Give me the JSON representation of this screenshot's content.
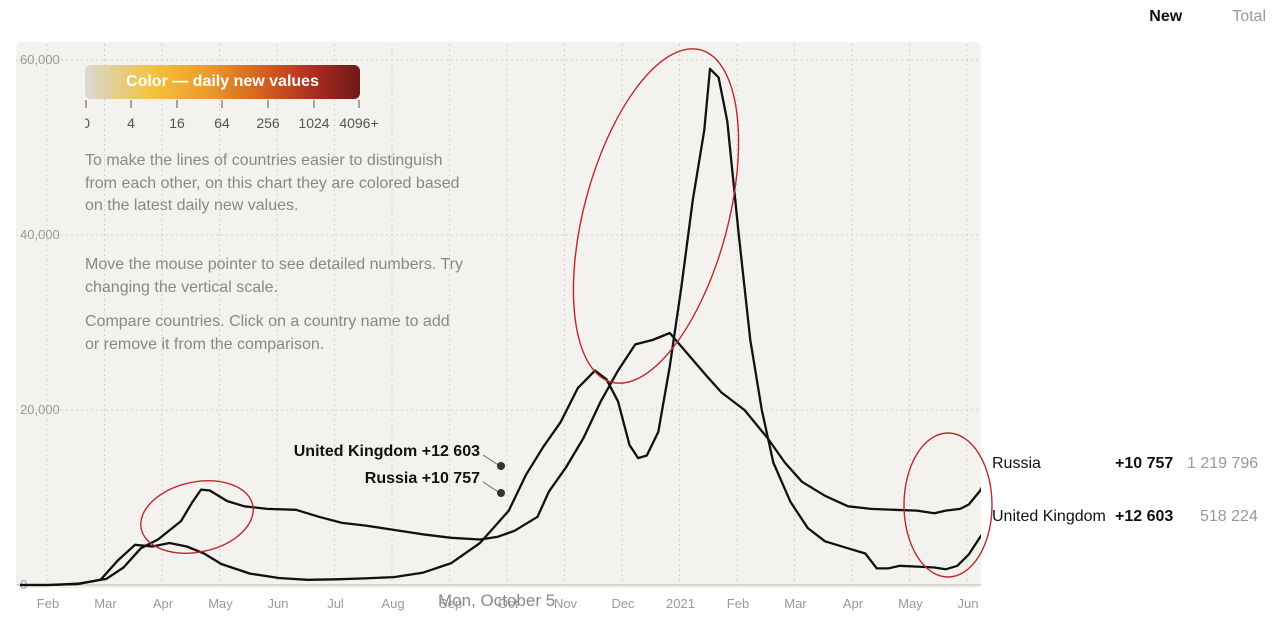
{
  "tabs": [
    {
      "label": "New",
      "active": true
    },
    {
      "label": "Total",
      "active": false
    }
  ],
  "legend": {
    "title": "Color — daily new values",
    "ticks": [
      "0",
      "4",
      "16",
      "64",
      "256",
      "1024",
      "4096+"
    ]
  },
  "info": {
    "p1": "To make the lines of countries easier to distinguish from each other, on this chart they are colored based on the latest daily new values.",
    "p2": "Move the mouse pointer to see detailed numbers. Try changing the vertical scale.",
    "p3": "Compare countries. Click on a country name to add or remove it from the comparison."
  },
  "hover": {
    "date": "Mon, October 5",
    "uk_label": "United Kingdom +12 603",
    "ru_label": "Russia +10 757"
  },
  "countries": [
    {
      "name": "Russia",
      "delta": "+10 757",
      "total": "1 219 796"
    },
    {
      "name": "United Kingdom",
      "delta": "+12 603",
      "total": "518 224"
    }
  ],
  "colors": {
    "panel": "#f3f2ee",
    "line": "#111111",
    "annotation": "#c0272d",
    "gradient": [
      "#d9d9d4",
      "#f3c23b",
      "#ea9a2c",
      "#d0561f",
      "#a52a1f",
      "#6e1a18"
    ]
  },
  "chart_data": {
    "type": "line",
    "title": "",
    "y_axis": {
      "ticks": [
        "0",
        "20,000",
        "40,000",
        "60,000"
      ],
      "ylim": [
        0,
        60000
      ]
    },
    "x_axis": {
      "ticks": [
        "Feb",
        "Mar",
        "Apr",
        "May",
        "Jun",
        "Jul",
        "Aug",
        "Sep",
        "Oct",
        "Nov",
        "Dec",
        "2021",
        "Feb",
        "Mar",
        "Apr",
        "May",
        "Jun"
      ]
    },
    "grid": true,
    "series": [
      {
        "name": "Russia",
        "points": [
          [
            0,
            0
          ],
          [
            0.5,
            0
          ],
          [
            1,
            150
          ],
          [
            1.5,
            700
          ],
          [
            1.8,
            2000
          ],
          [
            2.1,
            4200
          ],
          [
            2.4,
            5200
          ],
          [
            2.8,
            7300
          ],
          [
            3.0,
            9500
          ],
          [
            3.15,
            10900
          ],
          [
            3.3,
            10800
          ],
          [
            3.6,
            9600
          ],
          [
            3.9,
            9000
          ],
          [
            4.3,
            8700
          ],
          [
            4.8,
            8600
          ],
          [
            5.2,
            7800
          ],
          [
            5.6,
            7100
          ],
          [
            6.0,
            6800
          ],
          [
            6.5,
            6300
          ],
          [
            7.0,
            5800
          ],
          [
            7.5,
            5400
          ],
          [
            8.0,
            5200
          ],
          [
            8.3,
            5500
          ],
          [
            8.6,
            6200
          ],
          [
            9.0,
            7800
          ],
          [
            9.2,
            10700
          ],
          [
            9.5,
            13500
          ],
          [
            9.8,
            16800
          ],
          [
            10.1,
            21000
          ],
          [
            10.4,
            24500
          ],
          [
            10.7,
            27500
          ],
          [
            11.0,
            28000
          ],
          [
            11.3,
            28800
          ],
          [
            11.6,
            26500
          ],
          [
            11.9,
            24200
          ],
          [
            12.2,
            22000
          ],
          [
            12.6,
            20000
          ],
          [
            13.0,
            16800
          ],
          [
            13.3,
            14000
          ],
          [
            13.6,
            11800
          ],
          [
            14.0,
            10200
          ],
          [
            14.4,
            9000
          ],
          [
            14.8,
            8700
          ],
          [
            15.2,
            8600
          ],
          [
            15.6,
            8500
          ],
          [
            15.9,
            8200
          ],
          [
            16.1,
            8500
          ],
          [
            16.35,
            8700
          ],
          [
            16.5,
            9200
          ],
          [
            16.7,
            10800
          ],
          [
            16.9,
            13300
          ],
          [
            17.0,
            13800
          ]
        ]
      },
      {
        "name": "United Kingdom",
        "points": [
          [
            0,
            0
          ],
          [
            0.5,
            0
          ],
          [
            1,
            100
          ],
          [
            1.4,
            600
          ],
          [
            1.7,
            2800
          ],
          [
            2.0,
            4600
          ],
          [
            2.3,
            4400
          ],
          [
            2.6,
            4800
          ],
          [
            2.9,
            4400
          ],
          [
            3.2,
            3600
          ],
          [
            3.5,
            2400
          ],
          [
            4.0,
            1300
          ],
          [
            4.5,
            800
          ],
          [
            5.0,
            600
          ],
          [
            5.5,
            650
          ],
          [
            6.0,
            750
          ],
          [
            6.5,
            900
          ],
          [
            7.0,
            1400
          ],
          [
            7.5,
            2500
          ],
          [
            8.0,
            4800
          ],
          [
            8.5,
            8500
          ],
          [
            8.8,
            12600
          ],
          [
            9.1,
            15800
          ],
          [
            9.4,
            18600
          ],
          [
            9.7,
            22500
          ],
          [
            10.0,
            24500
          ],
          [
            10.2,
            23500
          ],
          [
            10.4,
            21000
          ],
          [
            10.6,
            16000
          ],
          [
            10.75,
            14500
          ],
          [
            10.9,
            14800
          ],
          [
            11.1,
            17500
          ],
          [
            11.3,
            25000
          ],
          [
            11.5,
            34000
          ],
          [
            11.7,
            44000
          ],
          [
            11.9,
            52000
          ],
          [
            12.0,
            59000
          ],
          [
            12.15,
            58000
          ],
          [
            12.3,
            53000
          ],
          [
            12.5,
            40000
          ],
          [
            12.7,
            28000
          ],
          [
            12.9,
            20000
          ],
          [
            13.1,
            14000
          ],
          [
            13.4,
            9500
          ],
          [
            13.7,
            6500
          ],
          [
            14.0,
            5000
          ],
          [
            14.4,
            4200
          ],
          [
            14.7,
            3600
          ],
          [
            14.9,
            1900
          ],
          [
            15.1,
            1900
          ],
          [
            15.3,
            2200
          ],
          [
            15.6,
            2100
          ],
          [
            15.9,
            2000
          ],
          [
            16.1,
            1800
          ],
          [
            16.3,
            2200
          ],
          [
            16.5,
            3500
          ],
          [
            16.7,
            5500
          ],
          [
            16.9,
            7200
          ],
          [
            17.0,
            7800
          ]
        ]
      }
    ]
  }
}
